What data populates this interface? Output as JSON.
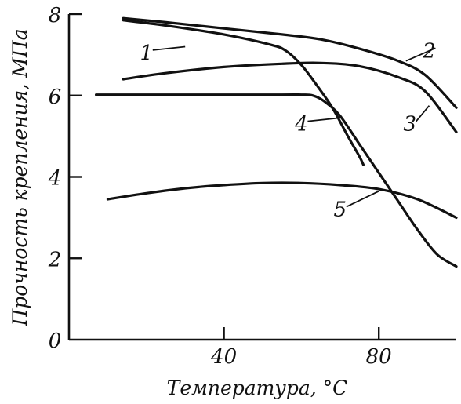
{
  "chart_data": {
    "type": "line",
    "xlabel": "Температура, °С",
    "ylabel": "Прочность крепления, МПа",
    "xlim": [
      0,
      100
    ],
    "ylim": [
      0,
      8
    ],
    "xticks": [
      40,
      80
    ],
    "xtick_labels": [
      "40",
      "80"
    ],
    "yticks": [
      0,
      2,
      4,
      6,
      8
    ],
    "ytick_labels": [
      "0",
      "2",
      "4",
      "6",
      "8"
    ],
    "grid": false,
    "legend": "none",
    "series": [
      {
        "name": "1",
        "x": [
          14,
          25,
          40,
          52,
          56,
          60,
          64,
          68,
          72,
          75,
          76
        ],
        "y": [
          7.85,
          7.72,
          7.5,
          7.25,
          7.1,
          6.75,
          6.25,
          5.7,
          5.0,
          4.5,
          4.3
        ]
      },
      {
        "name": "2",
        "x": [
          14,
          25,
          40,
          55,
          65,
          75,
          85,
          92,
          100
        ],
        "y": [
          7.9,
          7.8,
          7.65,
          7.5,
          7.38,
          7.15,
          6.85,
          6.5,
          5.7
        ]
      },
      {
        "name": "3",
        "x": [
          14,
          25,
          40,
          55,
          65,
          75,
          85,
          92,
          100
        ],
        "y": [
          6.4,
          6.55,
          6.7,
          6.78,
          6.8,
          6.72,
          6.45,
          6.1,
          5.1
        ]
      },
      {
        "name": "4",
        "x": [
          7,
          20,
          40,
          55,
          60,
          63,
          66,
          70,
          75,
          80,
          85,
          90,
          95,
          100
        ],
        "y": [
          6.02,
          6.02,
          6.02,
          6.02,
          6.02,
          6.0,
          5.85,
          5.5,
          4.8,
          4.1,
          3.4,
          2.7,
          2.1,
          1.8
        ]
      },
      {
        "name": "5",
        "x": [
          10,
          20,
          30,
          40,
          50,
          60,
          70,
          80,
          90,
          100
        ],
        "y": [
          3.45,
          3.6,
          3.72,
          3.8,
          3.85,
          3.85,
          3.8,
          3.7,
          3.45,
          3.0
        ]
      }
    ],
    "label_anchors": [
      {
        "series": "1",
        "x": 30,
        "y": 7.2,
        "text": "1",
        "lx": 20,
        "ly": 7.0
      },
      {
        "series": "2",
        "x": 87,
        "y": 6.85,
        "text": "2",
        "lx": 93,
        "ly": 7.05
      },
      {
        "series": "3",
        "x": 93,
        "y": 5.75,
        "text": "3",
        "lx": 88,
        "ly": 5.25
      },
      {
        "series": "4",
        "x": 70,
        "y": 5.45,
        "text": "4",
        "lx": 60,
        "ly": 5.25
      },
      {
        "series": "5",
        "x": 80,
        "y": 3.65,
        "text": "5",
        "lx": 70,
        "ly": 3.15
      }
    ]
  }
}
